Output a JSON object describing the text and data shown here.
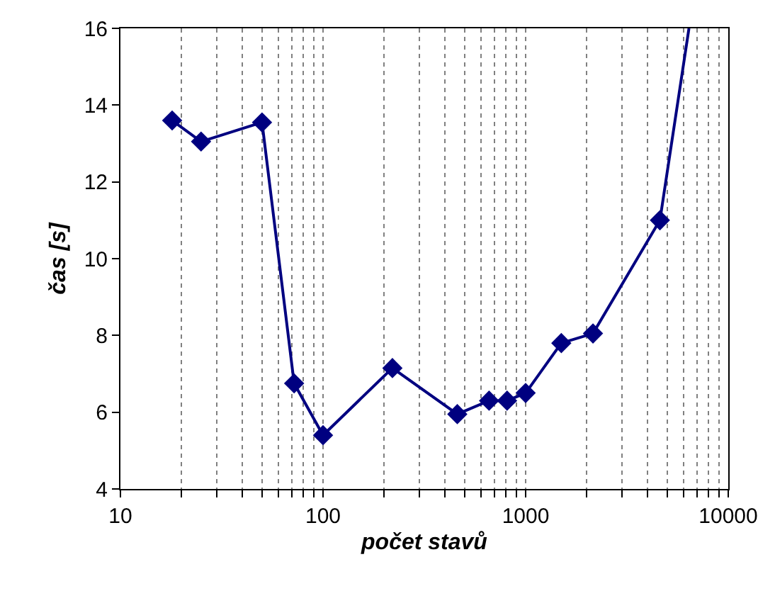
{
  "chart_data": {
    "type": "line",
    "xlabel": "počet stavů",
    "ylabel": "čas [s]",
    "log": "x",
    "grid": "x",
    "marker": "diamond",
    "line_style": "solid",
    "xlim": [
      10,
      10000
    ],
    "ylim": [
      4,
      16
    ],
    "xticks": [
      10,
      {
        "value": 20,
        "label": null
      },
      {
        "value": 30,
        "label": null
      },
      {
        "value": 40,
        "label": null
      },
      {
        "value": 50,
        "label": null
      },
      {
        "value": 60,
        "label": null
      },
      {
        "value": 70,
        "label": null
      },
      {
        "value": 80,
        "label": null
      },
      {
        "value": 90,
        "label": null
      },
      100,
      {
        "value": 200,
        "label": null
      },
      {
        "value": 300,
        "label": null
      },
      {
        "value": 400,
        "label": null
      },
      {
        "value": 500,
        "label": null
      },
      {
        "value": 600,
        "label": null
      },
      {
        "value": 700,
        "label": null
      },
      {
        "value": 800,
        "label": null
      },
      {
        "value": 900,
        "label": null
      },
      1000,
      {
        "value": 2000,
        "label": null
      },
      {
        "value": 3000,
        "label": null
      },
      {
        "value": 4000,
        "label": null
      },
      {
        "value": 5000,
        "label": null
      },
      {
        "value": 6000,
        "label": null
      },
      {
        "value": 7000,
        "label": null
      },
      {
        "value": 8000,
        "label": null
      },
      {
        "value": 9000,
        "label": null
      },
      10000
    ],
    "yticks": [
      4,
      6,
      8,
      10,
      12,
      14,
      16
    ],
    "series": [
      {
        "color": "#000080",
        "x": [
          18,
          25,
          50,
          72,
          100,
          220,
          460,
          660,
          810,
          1000,
          1500,
          2150,
          4600
        ],
        "values": [
          13.6,
          13.05,
          13.55,
          6.75,
          5.4,
          7.15,
          5.95,
          6.3,
          6.3,
          6.5,
          7.8,
          8.05,
          11.0
        ]
      },
      {
        "color": "#000080",
        "marker": "none",
        "x": [
          4600,
          6400
        ],
        "values": [
          11.0,
          16
        ]
      }
    ]
  }
}
